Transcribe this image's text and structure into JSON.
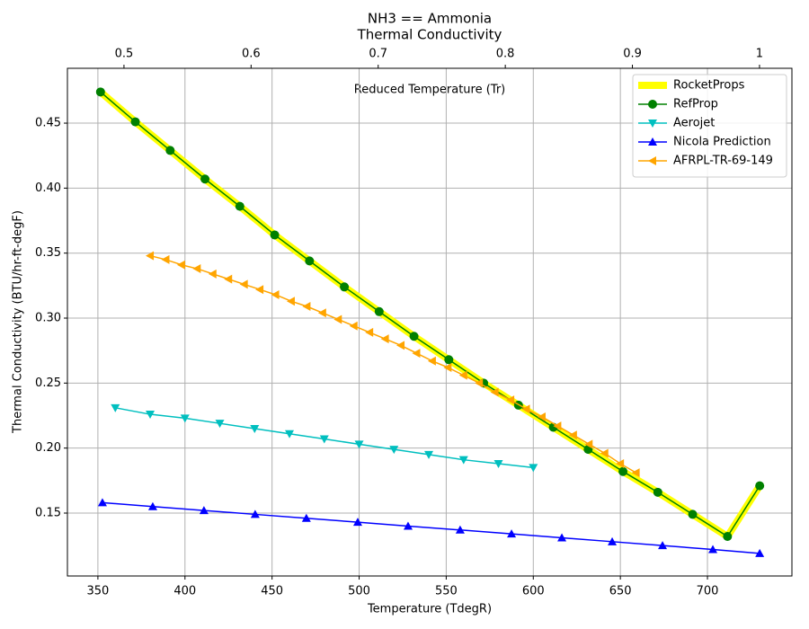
{
  "chart_data": {
    "type": "line",
    "title": "NH3 == Ammonia",
    "subtitle": "Thermal Conductivity",
    "xlabel": "Temperature (TdegR)",
    "ylabel": "Thermal Conductivity (BTU/hr-ft-degF)",
    "x2label": "Reduced Temperature (Tr)",
    "xlim": [
      332.5,
      748.5
    ],
    "xticks": [
      350,
      400,
      450,
      500,
      550,
      600,
      650,
      700
    ],
    "x2lim": [
      0.4555,
      1.0255
    ],
    "x2ticks": [
      0.5,
      0.6,
      0.7,
      0.8,
      0.9,
      1.0
    ],
    "ylim": [
      0.1016,
      0.4922
    ],
    "yticks": [
      0.15,
      {
        "value": 0.2,
        "label": "0.20"
      },
      0.25,
      {
        "value": 0.3,
        "label": "0.30"
      },
      0.35,
      {
        "value": 0.4,
        "label": "0.40"
      },
      0.45
    ],
    "grid": true,
    "legend": "upper right",
    "series": [
      {
        "name": "RocketProps",
        "color": "#ffff00",
        "width": 8,
        "marker": "none",
        "x": [
          351.5,
          371.5,
          391.5,
          411.5,
          431.5,
          451.5,
          471.5,
          491.5,
          511.5,
          531.5,
          551.5,
          571.5,
          591.5,
          611.5,
          631.5,
          651.5,
          671.5,
          691.5,
          711.5,
          730
        ],
        "values": [
          0.474,
          0.451,
          0.429,
          0.407,
          0.386,
          0.364,
          0.344,
          0.324,
          0.305,
          0.286,
          0.268,
          0.25,
          0.233,
          0.216,
          0.199,
          0.182,
          0.166,
          0.149,
          0.132,
          0.171
        ]
      },
      {
        "name": "RefProp",
        "color": "#008000",
        "width": 1.5,
        "marker": "circle",
        "x": [
          351.5,
          371.5,
          391.5,
          411.5,
          431.5,
          451.5,
          471.5,
          491.5,
          511.5,
          531.5,
          551.5,
          571.5,
          591.5,
          611.5,
          631.5,
          651.5,
          671.5,
          691.5,
          711.5,
          730
        ],
        "values": [
          0.474,
          0.451,
          0.429,
          0.407,
          0.386,
          0.364,
          0.344,
          0.324,
          0.305,
          0.286,
          0.268,
          0.25,
          0.233,
          0.216,
          0.199,
          0.182,
          0.166,
          0.149,
          0.132,
          0.171
        ]
      },
      {
        "name": "Aerojet",
        "color": "#00bfbf",
        "width": 1.5,
        "marker": "triangle-down",
        "x": [
          360,
          380,
          400,
          420,
          440,
          460,
          480,
          500,
          520,
          540,
          560,
          580,
          600
        ],
        "values": [
          0.231,
          0.226,
          0.223,
          0.219,
          0.215,
          0.211,
          0.207,
          0.203,
          0.199,
          0.195,
          0.191,
          0.188,
          0.185
        ]
      },
      {
        "name": "Nicola Prediction",
        "color": "#0000ff",
        "width": 1.5,
        "marker": "triangle-up",
        "x": [
          352.6,
          381.5,
          410.9,
          440.3,
          469.7,
          499.2,
          528.1,
          558,
          587.5,
          616.4,
          645.3,
          674.2,
          703.1,
          730
        ],
        "values": [
          0.158,
          0.155,
          0.152,
          0.149,
          0.146,
          0.143,
          0.14,
          0.137,
          0.134,
          0.131,
          0.128,
          0.125,
          0.122,
          0.119
        ]
      },
      {
        "name": "AFRPL-TR-69-149",
        "color": "#ffa500",
        "width": 1.5,
        "marker": "triangle-left",
        "x": [
          380,
          389,
          398,
          407,
          416,
          425,
          434,
          443,
          452,
          461,
          470,
          479,
          488,
          497,
          506,
          515,
          524,
          533,
          542,
          551,
          560,
          569,
          578,
          587,
          596,
          605,
          614,
          623,
          632,
          641,
          650,
          659
        ],
        "values": [
          0.348,
          0.345,
          0.341,
          0.338,
          0.334,
          0.33,
          0.326,
          0.322,
          0.318,
          0.313,
          0.309,
          0.304,
          0.299,
          0.294,
          0.289,
          0.284,
          0.279,
          0.273,
          0.267,
          0.262,
          0.256,
          0.25,
          0.243,
          0.237,
          0.23,
          0.224,
          0.217,
          0.21,
          0.203,
          0.196,
          0.188,
          0.181
        ]
      }
    ]
  }
}
